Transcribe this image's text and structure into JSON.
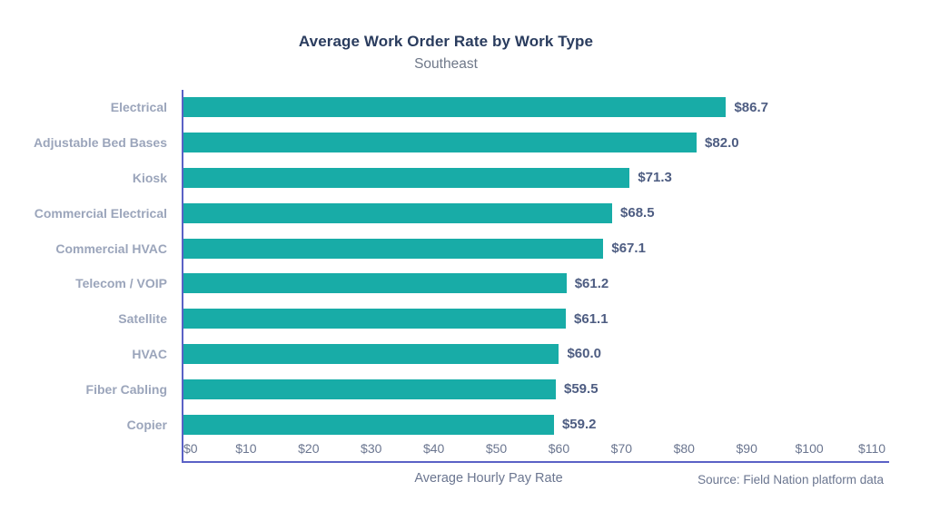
{
  "title": "Average Work Order Rate by Work Type",
  "subtitle": "Southeast",
  "source": "Source: Field Nation platform data",
  "chart_data": {
    "type": "bar",
    "orientation": "horizontal",
    "title": "Average Work Order Rate by Work Type",
    "subtitle": "Southeast",
    "xlabel": "Average Hourly Pay Rate",
    "ylabel": "",
    "xlim": [
      0,
      110
    ],
    "grid": false,
    "legend": false,
    "categories": [
      "Electrical",
      "Adjustable Bed Bases",
      "Kiosk",
      "Commercial Electrical",
      "Commercial HVAC",
      "Telecom / VOIP",
      "Satellite",
      "HVAC",
      "Fiber Cabling",
      "Copier"
    ],
    "values": [
      86.7,
      82.0,
      71.3,
      68.5,
      67.1,
      61.2,
      61.1,
      60.0,
      59.5,
      59.2
    ],
    "value_labels": [
      "$86.7",
      "$82.0",
      "$71.3",
      "$68.5",
      "$67.1",
      "$61.2",
      "$61.1",
      "$60.0",
      "$59.5",
      "$59.2"
    ],
    "x_tick_values": [
      0,
      10,
      20,
      30,
      40,
      50,
      60,
      70,
      80,
      90,
      100,
      110
    ],
    "x_tick_labels": [
      "$0",
      "$10",
      "$20",
      "$30",
      "$40",
      "$50",
      "$60",
      "$70",
      "$80",
      "$90",
      "$100",
      "$110"
    ]
  },
  "colors": {
    "bar": "#18ACA7",
    "axis": "#5B61C6",
    "title": "#2A3C5E",
    "subtitle": "#6F7889",
    "category": "#9BA5BB",
    "value": "#4E5D82",
    "tick": "#6B7690"
  }
}
